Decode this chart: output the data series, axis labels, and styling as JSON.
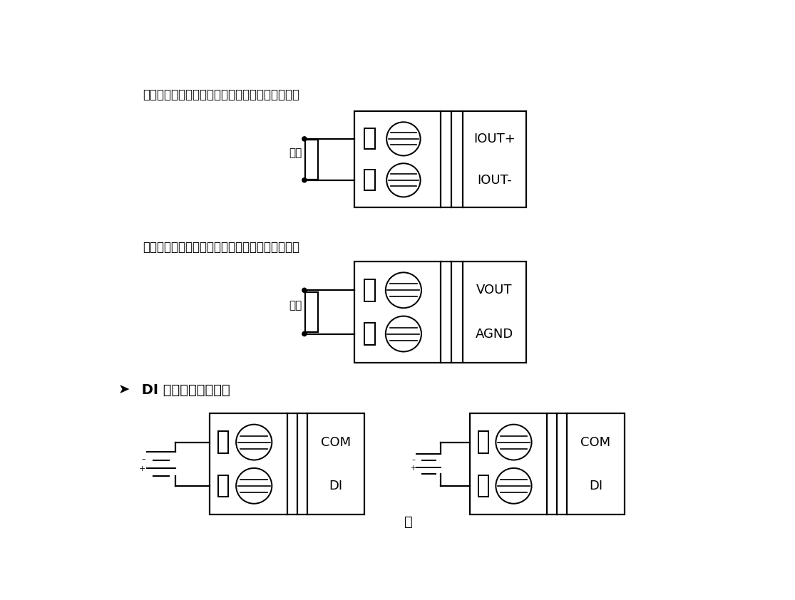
{
  "bg_color": "#ffffff",
  "title1": "当选择电流输出量程时，模块的连接方式如下图：",
  "title2": "当选择电压输出量程时，模块的连接方式如下图：",
  "title3": " DI 数字量输入连接：",
  "label_fuzai": "负载",
  "diagram1_labels": [
    "IOUT+",
    "IOUT-"
  ],
  "diagram2_labels": [
    "VOUT",
    "AGND"
  ],
  "diagram3_labels": [
    "COM",
    "DI"
  ],
  "or_text": "或",
  "lw": 1.6
}
